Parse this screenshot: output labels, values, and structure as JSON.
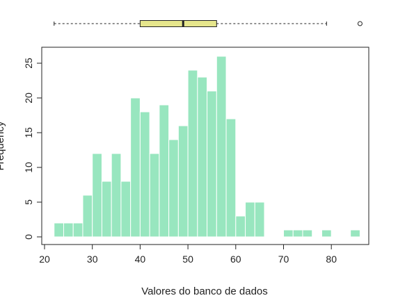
{
  "chart_data": {
    "type": "bar",
    "xlabel": "Valores do banco de dados",
    "ylabel": "Frequency",
    "xlim": [
      20,
      87
    ],
    "ylim": [
      0,
      27
    ],
    "xticks": [
      "20",
      "30",
      "40",
      "50",
      "60",
      "70",
      "80"
    ],
    "yticks": [
      "0",
      "5",
      "10",
      "15",
      "20",
      "25"
    ],
    "bin_width": 2,
    "bins": [
      {
        "start": 22,
        "count": 2
      },
      {
        "start": 24,
        "count": 2
      },
      {
        "start": 26,
        "count": 2
      },
      {
        "start": 28,
        "count": 6
      },
      {
        "start": 30,
        "count": 12
      },
      {
        "start": 32,
        "count": 8
      },
      {
        "start": 34,
        "count": 12
      },
      {
        "start": 36,
        "count": 8
      },
      {
        "start": 38,
        "count": 20
      },
      {
        "start": 40,
        "count": 18
      },
      {
        "start": 42,
        "count": 12
      },
      {
        "start": 44,
        "count": 19
      },
      {
        "start": 46,
        "count": 14
      },
      {
        "start": 48,
        "count": 16
      },
      {
        "start": 50,
        "count": 24
      },
      {
        "start": 52,
        "count": 23
      },
      {
        "start": 54,
        "count": 21
      },
      {
        "start": 56,
        "count": 26
      },
      {
        "start": 58,
        "count": 17
      },
      {
        "start": 60,
        "count": 3
      },
      {
        "start": 62,
        "count": 5
      },
      {
        "start": 64,
        "count": 5
      },
      {
        "start": 70,
        "count": 1
      },
      {
        "start": 72,
        "count": 1
      },
      {
        "start": 74,
        "count": 1
      },
      {
        "start": 78,
        "count": 1
      },
      {
        "start": 84,
        "count": 1
      }
    ],
    "boxplot": {
      "whisker_low": 22,
      "q1": 40,
      "median": 49,
      "q3": 56,
      "whisker_high": 79,
      "outliers": [
        86
      ]
    },
    "colors": {
      "bars": "#98e6bf",
      "bar_border": "#ffffff",
      "box_fill": "#e6e68c",
      "axis": "#222222"
    },
    "grid": false,
    "legend": "none"
  }
}
